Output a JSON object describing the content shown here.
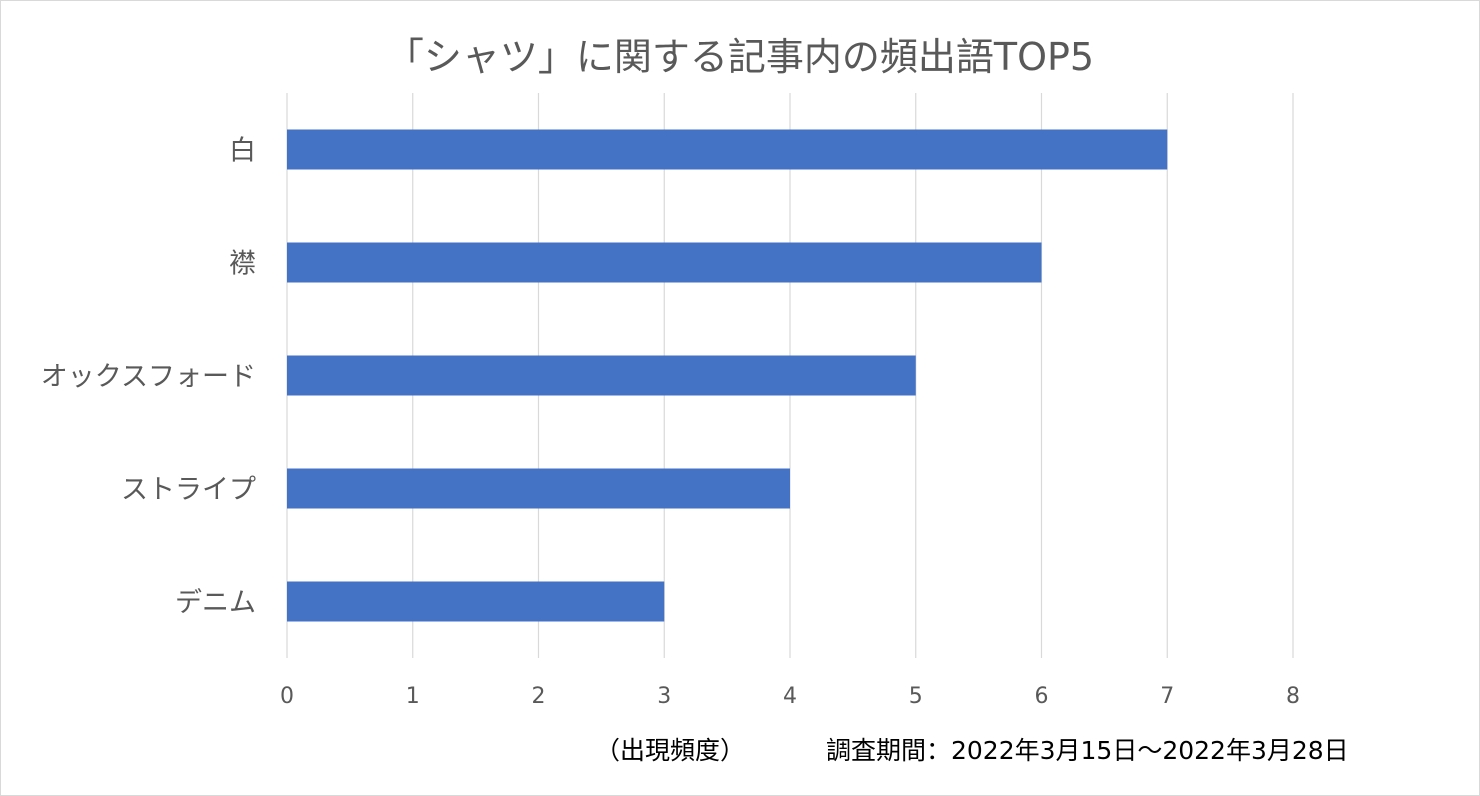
{
  "chart_data": {
    "type": "bar",
    "orientation": "horizontal",
    "title": "「シャツ」に関する記事内の頻出語TOP5",
    "xlabel": "（出現頻度）",
    "note": "調査期間：2022年3月15日～2022年3月28日",
    "categories": [
      "白",
      "襟",
      "オックスフォード",
      "ストライプ",
      "デニム"
    ],
    "values": [
      7,
      6,
      5,
      4,
      3
    ],
    "xlim": [
      0,
      8
    ],
    "xticks": [
      0,
      1,
      2,
      3,
      4,
      5,
      6,
      7,
      8
    ],
    "grid": "vertical",
    "legend": "none",
    "bar_color": "#4472c4",
    "grid_color": "#d9d9d9"
  }
}
